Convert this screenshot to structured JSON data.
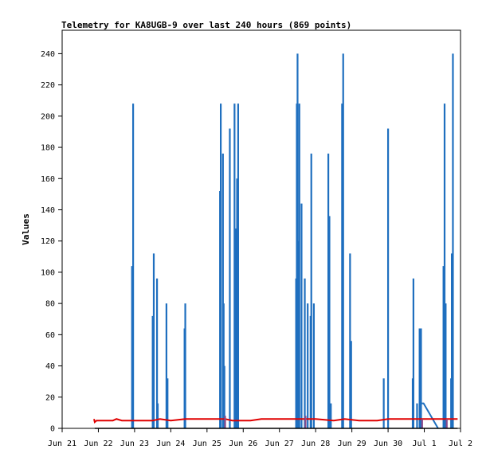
{
  "chart_data": {
    "type": "line",
    "title": "Telemetry for KA8UGB-9 over last 240 hours (869 points)",
    "xlabel": "",
    "ylabel": "Values",
    "x_ticks": [
      "Jun 21",
      "Jun 22",
      "Jun 23",
      "Jun 24",
      "Jun 25",
      "Jun 26",
      "Jun 27",
      "Jun 28",
      "Jun 29",
      "Jun 30",
      "Jul 1",
      "Jul 2"
    ],
    "xlim": [
      0,
      11
    ],
    "y_ticks": [
      0,
      20,
      40,
      60,
      80,
      100,
      120,
      140,
      160,
      180,
      200,
      220,
      240
    ],
    "ylim": [
      0,
      255
    ],
    "grid": false,
    "colors": {
      "blue": "#1f6fbf",
      "red": "#e00000",
      "black": "#000000",
      "purple": "#8a4a8a"
    },
    "series": [
      {
        "color": "blue",
        "style": "spikes",
        "spikes": [
          [
            1.93,
            104
          ],
          [
            1.96,
            208
          ],
          [
            2.5,
            72
          ],
          [
            2.53,
            112
          ],
          [
            2.62,
            96
          ],
          [
            2.64,
            16
          ],
          [
            2.88,
            80
          ],
          [
            2.91,
            32
          ],
          [
            3.38,
            64
          ],
          [
            3.4,
            80
          ],
          [
            4.36,
            152
          ],
          [
            4.38,
            208
          ],
          [
            4.44,
            176
          ],
          [
            4.46,
            80
          ],
          [
            4.48,
            40
          ],
          [
            4.63,
            192
          ],
          [
            4.76,
            208
          ],
          [
            4.79,
            128
          ],
          [
            4.83,
            160
          ],
          [
            4.86,
            208
          ],
          [
            6.46,
            96
          ],
          [
            6.48,
            208
          ],
          [
            6.5,
            240
          ],
          [
            6.52,
            120
          ],
          [
            6.55,
            208
          ],
          [
            6.61,
            144
          ],
          [
            6.7,
            96
          ],
          [
            6.78,
            80
          ],
          [
            6.86,
            72
          ],
          [
            6.88,
            176
          ],
          [
            6.95,
            80
          ],
          [
            7.35,
            176
          ],
          [
            7.38,
            136
          ],
          [
            7.42,
            16
          ],
          [
            7.73,
            208
          ],
          [
            7.76,
            240
          ],
          [
            7.95,
            112
          ],
          [
            7.98,
            56
          ],
          [
            8.88,
            32
          ],
          [
            9.0,
            192
          ],
          [
            9.68,
            32
          ],
          [
            9.7,
            96
          ],
          [
            9.8,
            16
          ],
          [
            9.87,
            64
          ],
          [
            9.89,
            64
          ],
          [
            9.91,
            64
          ],
          [
            10.53,
            104
          ],
          [
            10.56,
            208
          ],
          [
            10.59,
            80
          ],
          [
            10.74,
            32
          ],
          [
            10.76,
            112
          ],
          [
            10.79,
            240
          ]
        ],
        "segments": [
          [
            9.87,
            16
          ],
          [
            9.98,
            16
          ],
          [
            10.38,
            0
          ]
        ]
      },
      {
        "color": "red",
        "style": "line",
        "points": [
          [
            0.88,
            6
          ],
          [
            0.9,
            4
          ],
          [
            0.95,
            5
          ],
          [
            1.4,
            5
          ],
          [
            1.5,
            6
          ],
          [
            1.65,
            5
          ],
          [
            2.0,
            5
          ],
          [
            2.5,
            5
          ],
          [
            2.7,
            6
          ],
          [
            3.0,
            5
          ],
          [
            3.4,
            6
          ],
          [
            4.0,
            6
          ],
          [
            4.5,
            6
          ],
          [
            4.7,
            5
          ],
          [
            5.2,
            5
          ],
          [
            5.5,
            6
          ],
          [
            6.0,
            6
          ],
          [
            6.5,
            6
          ],
          [
            7.0,
            6
          ],
          [
            7.5,
            5
          ],
          [
            7.8,
            6
          ],
          [
            8.2,
            5
          ],
          [
            8.7,
            5
          ],
          [
            9.0,
            6
          ],
          [
            9.5,
            6
          ],
          [
            10.0,
            6
          ],
          [
            10.5,
            6
          ],
          [
            10.92,
            6
          ]
        ]
      },
      {
        "color": "purple",
        "style": "spikes",
        "spikes": [
          [
            4.5,
            8
          ],
          [
            6.72,
            8
          ],
          [
            9.94,
            6
          ],
          [
            10.62,
            6
          ]
        ]
      },
      {
        "color": "black",
        "style": "line",
        "points": [
          [
            0.9,
            0
          ],
          [
            10.92,
            0
          ]
        ]
      }
    ]
  }
}
